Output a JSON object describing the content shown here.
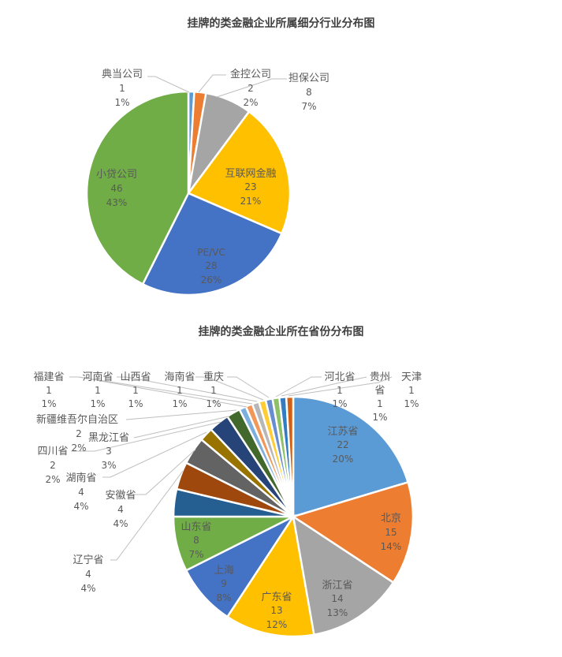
{
  "chart_data": [
    {
      "type": "pie",
      "title": "挂牌的类金融企业所属细分行业分布图",
      "categories": [
        "典当公司",
        "金控公司",
        "担保公司",
        "互联网金融",
        "PE/VC",
        "小贷公司"
      ],
      "values": [
        1,
        2,
        8,
        23,
        28,
        46
      ],
      "percent_labels": [
        "1%",
        "2%",
        "7%",
        "21%",
        "26%",
        "43%"
      ],
      "colors": [
        "#5B9BD5",
        "#ED7D31",
        "#A5A5A5",
        "#FFC000",
        "#4472C4",
        "#70AD47"
      ],
      "legend": "none (data labels with name, value, percent)"
    },
    {
      "type": "pie",
      "title": "挂牌的类金融企业所在省份分布图",
      "categories": [
        "江苏省",
        "北京",
        "浙江省",
        "广东省",
        "上海",
        "山东省",
        "辽宁省",
        "安徽省",
        "湖南省",
        "四川省",
        "黑龙江省",
        "新疆维吾尔自治区",
        "福建省",
        "河南省",
        "山西省",
        "海南省",
        "重庆",
        "河北省",
        "贵州省",
        "天津"
      ],
      "values": [
        22,
        15,
        14,
        13,
        9,
        8,
        4,
        4,
        4,
        2,
        3,
        2,
        1,
        1,
        1,
        1,
        1,
        1,
        1,
        1
      ],
      "percent_labels": [
        "20%",
        "14%",
        "13%",
        "12%",
        "8%",
        "7%",
        "4%",
        "4%",
        "4%",
        "2%",
        "3%",
        "2%",
        "1%",
        "1%",
        "1%",
        "1%",
        "1%",
        "1%",
        "1%",
        "1%"
      ],
      "colors": [
        "#5B9BD5",
        "#ED7D31",
        "#A5A5A5",
        "#FFC000",
        "#4472C4",
        "#70AD47",
        "#255E91",
        "#9E480E",
        "#636363",
        "#997300",
        "#264478",
        "#43682B",
        "#7CAFDD",
        "#F1975A",
        "#B7B7B7",
        "#FFCD33",
        "#698ED0",
        "#8CC168",
        "#327DC2",
        "#D26012"
      ],
      "legend": "none (data labels with name, value, percent)"
    }
  ],
  "chart1": {
    "title": "挂牌的类金融企业所属细分行业分布图",
    "labels": [
      {
        "name": "典当公司",
        "value": "1",
        "pct": "1%"
      },
      {
        "name": "金控公司",
        "value": "2",
        "pct": "2%"
      },
      {
        "name": "担保公司",
        "value": "8",
        "pct": "7%"
      },
      {
        "name": "互联网金融",
        "value": "23",
        "pct": "21%"
      },
      {
        "name": "PE/VC",
        "value": "28",
        "pct": "26%"
      },
      {
        "name": "小贷公司",
        "value": "46",
        "pct": "43%"
      }
    ]
  },
  "chart2": {
    "title": "挂牌的类金融企业所在省份分布图",
    "labels": [
      {
        "name": "江苏省",
        "value": "22",
        "pct": "20%"
      },
      {
        "name": "北京",
        "value": "15",
        "pct": "14%"
      },
      {
        "name": "浙江省",
        "value": "14",
        "pct": "13%"
      },
      {
        "name": "广东省",
        "value": "13",
        "pct": "12%"
      },
      {
        "name": "上海",
        "value": "9",
        "pct": "8%"
      },
      {
        "name": "山东省",
        "value": "8",
        "pct": "7%"
      },
      {
        "name": "辽宁省",
        "value": "4",
        "pct": "4%"
      },
      {
        "name": "安徽省",
        "value": "4",
        "pct": "4%"
      },
      {
        "name": "湖南省",
        "value": "4",
        "pct": "4%"
      },
      {
        "name": "四川省",
        "value": "2",
        "pct": "2%"
      },
      {
        "name": "黑龙江省",
        "value": "3",
        "pct": "3%"
      },
      {
        "name": "新疆维吾尔自治区",
        "value": "2",
        "pct": "2%"
      },
      {
        "name": "福建省",
        "value": "1",
        "pct": "1%"
      },
      {
        "name": "河南省",
        "value": "1",
        "pct": "1%"
      },
      {
        "name": "山西省",
        "value": "1",
        "pct": "1%"
      },
      {
        "name": "海南省",
        "value": "1",
        "pct": "1%"
      },
      {
        "name": "重庆",
        "value": "1",
        "pct": "1%"
      },
      {
        "name": "河北省",
        "value": "1",
        "pct": "1%"
      },
      {
        "name": "贵州",
        "name2": "省",
        "value": "1",
        "pct": "1%"
      },
      {
        "name": "天津",
        "value": "1",
        "pct": "1%"
      }
    ]
  }
}
